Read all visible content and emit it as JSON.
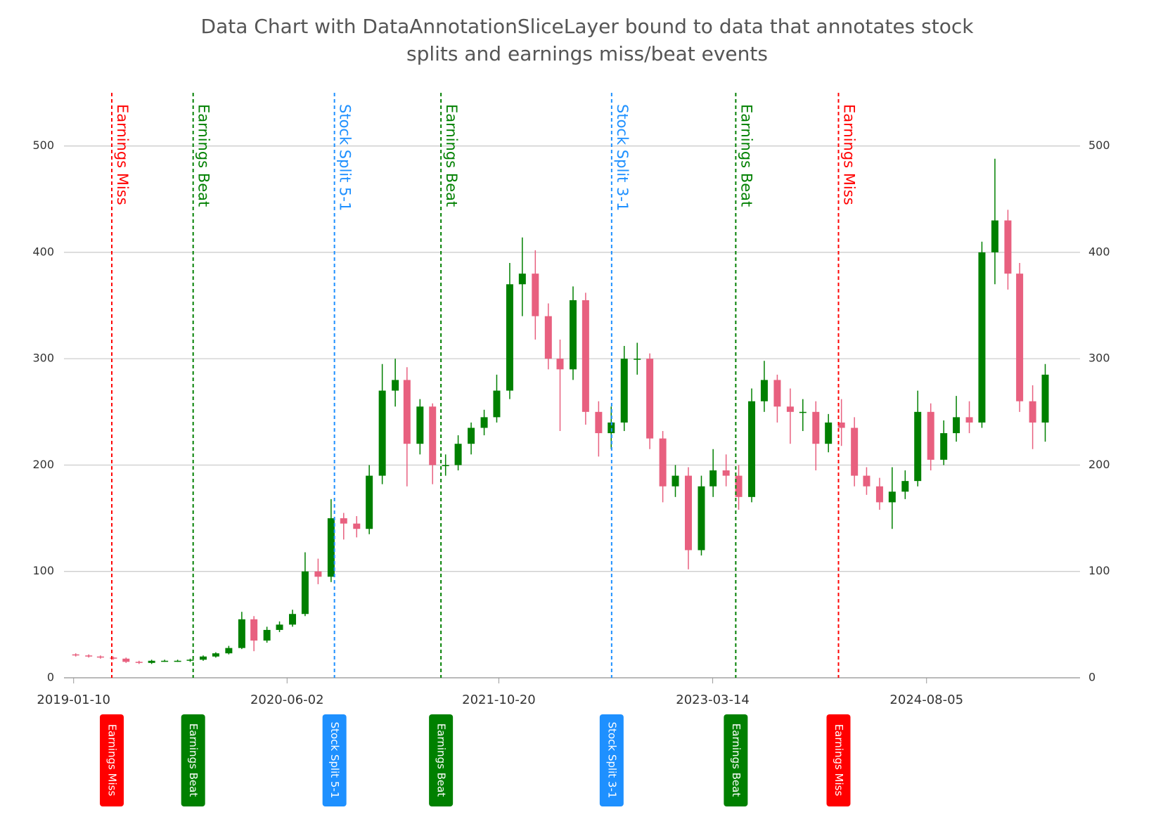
{
  "chart_data": {
    "type": "candlestick",
    "title": [
      "Data Chart with DataAnnotationSliceLayer bound to data that annotates stock",
      "splits and earnings miss/beat events"
    ],
    "x": [
      "2019-01-15",
      "2019-02-15",
      "2019-03-15",
      "2019-04-15",
      "2019-05-15",
      "2019-06-15",
      "2019-07-15",
      "2019-08-15",
      "2019-09-15",
      "2019-10-15",
      "2019-11-15",
      "2019-12-15",
      "2020-01-15",
      "2020-02-15",
      "2020-03-15",
      "2020-04-15",
      "2020-05-15",
      "2020-06-15",
      "2020-07-15",
      "2020-08-15",
      "2020-09-15",
      "2020-10-15",
      "2020-11-15",
      "2020-12-15",
      "2021-01-15",
      "2021-02-15",
      "2021-03-15",
      "2021-04-15",
      "2021-05-15",
      "2021-06-15",
      "2021-07-15",
      "2021-08-15",
      "2021-09-15",
      "2021-10-15",
      "2021-11-15",
      "2021-12-15",
      "2022-01-15",
      "2022-02-15",
      "2022-03-15",
      "2022-04-15",
      "2022-05-15",
      "2022-06-15",
      "2022-07-15",
      "2022-08-15",
      "2022-09-15",
      "2022-10-15",
      "2022-11-15",
      "2022-12-15",
      "2023-01-15",
      "2023-02-15",
      "2023-03-15",
      "2023-04-15",
      "2023-05-15",
      "2023-06-15",
      "2023-07-15",
      "2023-08-15",
      "2023-09-15",
      "2023-10-15",
      "2023-11-15",
      "2023-12-15",
      "2024-01-15",
      "2024-02-15",
      "2024-03-15",
      "2024-04-15",
      "2024-05-15",
      "2024-06-15",
      "2024-07-15",
      "2024-08-15",
      "2024-09-15",
      "2024-10-15",
      "2024-11-15",
      "2024-12-15",
      "2025-01-15",
      "2025-02-15",
      "2025-03-15",
      "2025-04-15",
      "2025-05-15"
    ],
    "open": [
      22,
      21,
      20,
      19,
      18,
      15,
      14,
      16,
      16,
      16,
      17,
      20,
      23,
      28,
      55,
      35,
      45,
      50,
      60,
      100,
      95,
      150,
      145,
      140,
      190,
      270,
      280,
      220,
      255,
      200,
      200,
      220,
      235,
      245,
      270,
      370,
      380,
      340,
      300,
      290,
      355,
      250,
      230,
      240,
      300,
      300,
      225,
      180,
      190,
      120,
      180,
      195,
      190,
      170,
      260,
      280,
      255,
      250,
      250,
      220,
      240,
      235,
      190,
      180,
      165,
      175,
      185,
      250,
      205,
      230,
      245,
      240,
      400,
      430,
      380,
      260,
      240
    ],
    "high": [
      23,
      22,
      21,
      20,
      19,
      16,
      17,
      17,
      17,
      18,
      21,
      24,
      30,
      62,
      58,
      48,
      53,
      64,
      118,
      112,
      168,
      155,
      152,
      200,
      295,
      300,
      292,
      262,
      258,
      210,
      228,
      240,
      252,
      285,
      390,
      414,
      402,
      352,
      318,
      368,
      362,
      260,
      255,
      312,
      315,
      305,
      232,
      200,
      198,
      190,
      215,
      210,
      200,
      272,
      298,
      285,
      272,
      262,
      260,
      248,
      262,
      245,
      198,
      188,
      198,
      195,
      270,
      258,
      242,
      265,
      260,
      410,
      488,
      440,
      390,
      275,
      295
    ],
    "low": [
      20,
      19,
      18,
      17,
      14,
      13,
      13,
      15,
      15,
      15,
      16,
      19,
      22,
      27,
      25,
      33,
      43,
      48,
      58,
      88,
      90,
      130,
      132,
      135,
      182,
      255,
      180,
      210,
      182,
      190,
      195,
      210,
      228,
      240,
      262,
      340,
      318,
      290,
      232,
      280,
      238,
      208,
      215,
      232,
      285,
      215,
      165,
      170,
      102,
      115,
      170,
      180,
      158,
      165,
      250,
      240,
      220,
      232,
      195,
      212,
      218,
      180,
      172,
      158,
      140,
      168,
      180,
      195,
      200,
      222,
      230,
      235,
      370,
      365,
      250,
      215,
      222
    ],
    "close": [
      21,
      20,
      19,
      18,
      15,
      14,
      16,
      16,
      16,
      17,
      20,
      23,
      28,
      55,
      35,
      45,
      50,
      60,
      100,
      95,
      150,
      145,
      140,
      190,
      270,
      280,
      220,
      255,
      200,
      200,
      220,
      235,
      245,
      270,
      370,
      380,
      340,
      300,
      290,
      355,
      250,
      230,
      240,
      300,
      300,
      225,
      180,
      190,
      120,
      180,
      195,
      190,
      170,
      260,
      280,
      255,
      250,
      250,
      220,
      240,
      235,
      190,
      180,
      165,
      175,
      185,
      250,
      205,
      230,
      245,
      240,
      400,
      430,
      380,
      260,
      240,
      285
    ],
    "up_color": "#008000",
    "down_color": "#e8607f",
    "xlim": [
      "2018-12-18",
      "2025-08-06"
    ],
    "xticks": [
      "2019-01-10",
      "2020-06-02",
      "2021-10-20",
      "2023-03-14",
      "2024-08-05"
    ],
    "ylim": [
      0,
      550
    ],
    "yticks": [
      0,
      100,
      200,
      300,
      400,
      500
    ],
    "grid": true,
    "annotations": [
      {
        "x": "2019-04-11",
        "label": "Earnings Miss",
        "color": "#ff0000"
      },
      {
        "x": "2019-10-22",
        "label": "Earnings Beat",
        "color": "#008000"
      },
      {
        "x": "2020-09-23",
        "label": "Stock Split 5-1",
        "color": "#1e90ff"
      },
      {
        "x": "2021-06-04",
        "label": "Earnings Beat",
        "color": "#008000"
      },
      {
        "x": "2022-07-16",
        "label": "Stock Split 3-1",
        "color": "#1e90ff"
      },
      {
        "x": "2023-05-08",
        "label": "Earnings Beat",
        "color": "#008000"
      },
      {
        "x": "2024-01-08",
        "label": "Earnings Miss",
        "color": "#ff0000"
      }
    ]
  }
}
